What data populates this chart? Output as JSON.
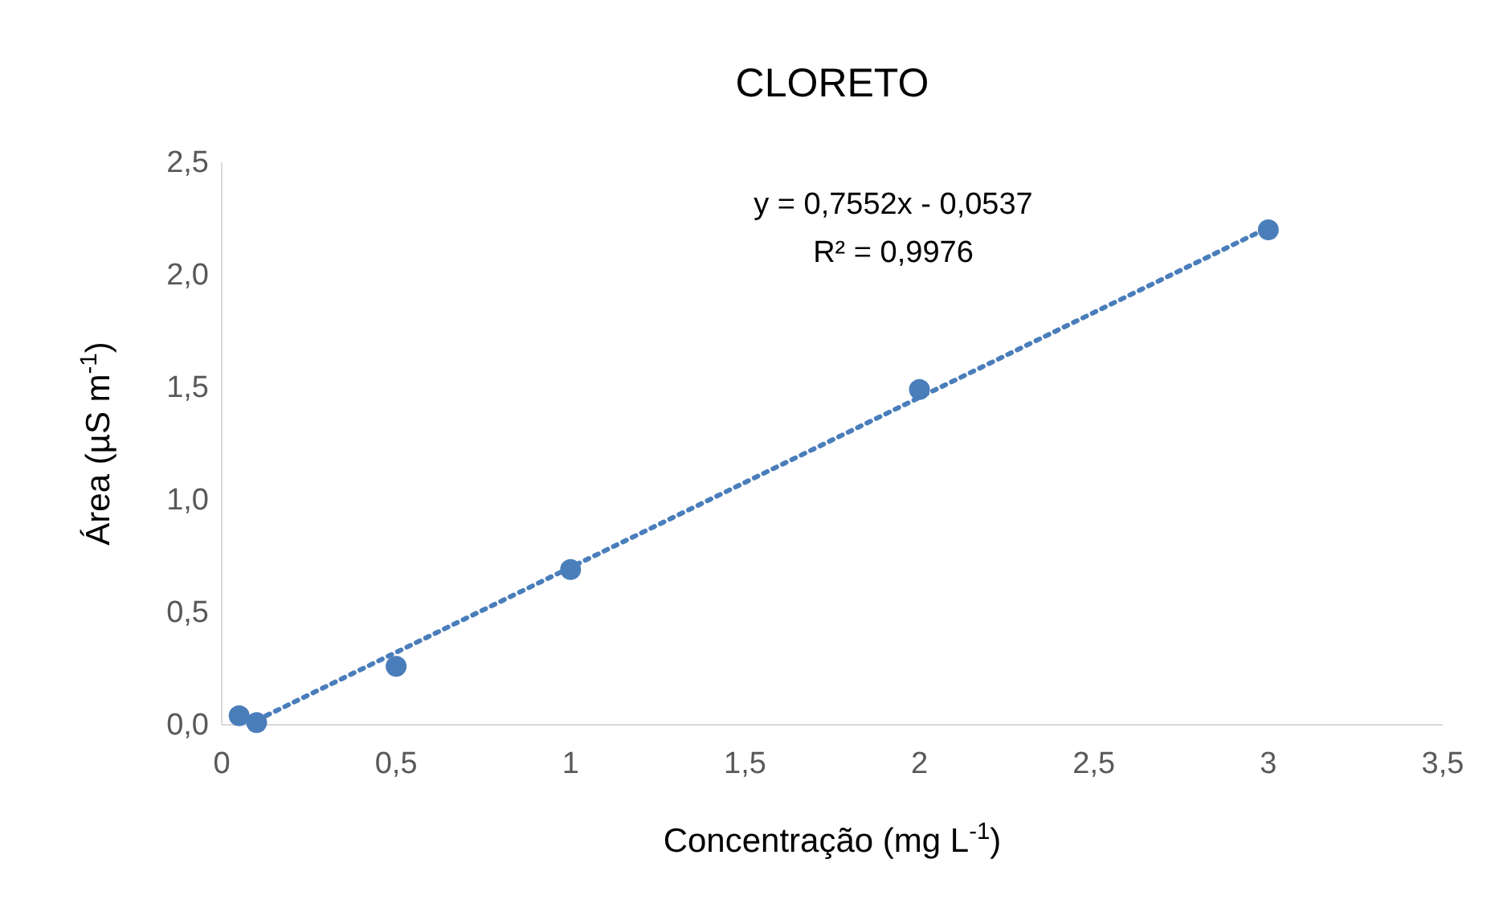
{
  "chart_data": {
    "type": "scatter",
    "title": "CLORETO",
    "xlabel": "Concentração (mg L$^{-1}$)",
    "ylabel": "Área (µS m$^{-1}$)",
    "series": [
      {
        "color": "#4a7ebb",
        "x": [
          0.05,
          0.1,
          0.5,
          1,
          2,
          3
        ],
        "values": [
          0.04,
          0.01,
          0.26,
          0.69,
          1.49,
          2.2
        ],
        "marker": "circle"
      },
      {
        "type": "line",
        "color": "#4a7ebb",
        "x": [
          0.1,
          3
        ],
        "values": [
          0.02,
          2.21
        ],
        "line_style": "dotted",
        "marker": "none"
      }
    ],
    "annotations": [
      "y = 0,7552x - 0,0537",
      "R² = 0,9976"
    ],
    "xlim": [
      0,
      3.5
    ],
    "ylim": [
      0,
      2.5
    ],
    "xticks": [
      0,
      {
        "value": 0.5,
        "label": "0,5"
      },
      1,
      {
        "value": 1.5,
        "label": "1,5"
      },
      2,
      {
        "value": 2.5,
        "label": "2,5"
      },
      3,
      {
        "value": 3.5,
        "label": "3,5"
      }
    ],
    "yticks": [
      {
        "value": 0,
        "label": "0,0"
      },
      {
        "value": 0.5,
        "label": "0,5"
      },
      {
        "value": 1,
        "label": "1,0"
      },
      {
        "value": 1.5,
        "label": "1,5"
      },
      {
        "value": 2,
        "label": "2,0"
      },
      {
        "value": 2.5,
        "label": "2,5"
      }
    ],
    "grid": false
  }
}
